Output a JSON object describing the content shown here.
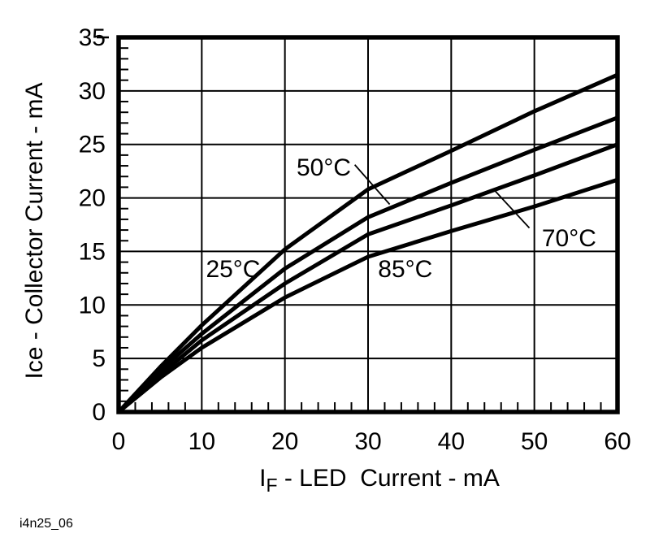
{
  "figure": {
    "id_label": "i4n25_06",
    "background": "#ffffff",
    "ink": "#000000"
  },
  "chart_data": {
    "type": "line",
    "title": "",
    "ylabel": "Ice - Collector Current - mA",
    "xlabel": "IF - LED  Current - mA",
    "xlabel_parts": {
      "prefix": "I",
      "sub": "F",
      "rest": " - LED  Current - mA"
    },
    "xlim": [
      0,
      60
    ],
    "ylim": [
      0,
      35
    ],
    "x_major_ticks": [
      0,
      10,
      20,
      30,
      40,
      50,
      60
    ],
    "y_major_ticks": [
      0,
      5,
      10,
      15,
      20,
      25,
      30,
      35
    ],
    "x_minor_step": 2,
    "y_minor_step": 1,
    "grid": true,
    "legend_position": "inline-labels",
    "x": [
      0,
      5,
      10,
      20,
      30,
      40,
      50,
      60
    ],
    "series": [
      {
        "name": "25°C",
        "values": [
          0,
          4.2,
          8.1,
          15.2,
          20.8,
          24.4,
          28.1,
          31.5
        ]
      },
      {
        "name": "50°C",
        "values": [
          0,
          3.9,
          7.3,
          13.4,
          18.2,
          21.4,
          24.5,
          27.5
        ]
      },
      {
        "name": "70°C",
        "values": [
          0,
          3.5,
          6.7,
          12.0,
          16.6,
          19.3,
          22.1,
          25.0
        ]
      },
      {
        "name": "85°C",
        "values": [
          0,
          3.2,
          6.0,
          10.7,
          14.5,
          16.9,
          19.2,
          21.7
        ]
      }
    ],
    "annotations": [
      {
        "text": "25°C",
        "x": 10.5,
        "y": 12.6,
        "anchor": "start"
      },
      {
        "text": "50°C",
        "x": 21.4,
        "y": 22.1,
        "anchor": "start",
        "leader": {
          "x1": 28.4,
          "y1": 23.1,
          "x2": 32.6,
          "y2": 19.4
        }
      },
      {
        "text": "70°C",
        "x": 50.9,
        "y": 15.5,
        "anchor": "start",
        "leader": {
          "x1": 45.1,
          "y1": 20.8,
          "x2": 49.4,
          "y2": 17.2
        }
      },
      {
        "text": "85°C",
        "x": 31.2,
        "y": 12.6,
        "anchor": "start"
      }
    ]
  }
}
